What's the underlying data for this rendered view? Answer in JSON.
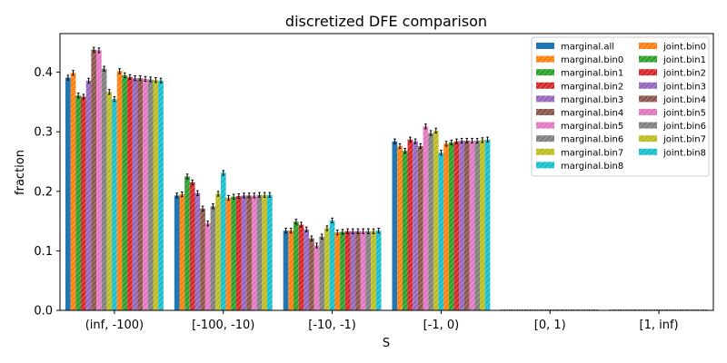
{
  "chart_data": {
    "type": "bar",
    "title": "discretized DFE comparison",
    "xlabel": "S",
    "ylabel": "fraction",
    "ylim": [
      0,
      0.465
    ],
    "yticks": [
      "0.0",
      "0.1",
      "0.2",
      "0.3",
      "0.4"
    ],
    "ytick_values": [
      0,
      0.1,
      0.2,
      0.3,
      0.4
    ],
    "categories": [
      "(inf, -100)",
      "[-100, -10)",
      "[-10, -1)",
      "[-1, 0)",
      "[0, 1)",
      "[1, inf)"
    ],
    "legend_position": "upper right",
    "series": [
      {
        "name": "marginal.all",
        "color": "#1f77b4",
        "hatch": false,
        "values": [
          0.391,
          0.193,
          0.134,
          0.284,
          0.0,
          0.0
        ]
      },
      {
        "name": "marginal.bin0",
        "color": "#ff7f0e",
        "hatch": true,
        "values": [
          0.399,
          0.195,
          0.134,
          0.276,
          0.0,
          0.0
        ]
      },
      {
        "name": "marginal.bin1",
        "color": "#2ca02c",
        "hatch": true,
        "values": [
          0.361,
          0.225,
          0.149,
          0.268,
          0.0,
          0.0
        ]
      },
      {
        "name": "marginal.bin2",
        "color": "#d62728",
        "hatch": true,
        "values": [
          0.359,
          0.215,
          0.144,
          0.287,
          0.0,
          0.0
        ]
      },
      {
        "name": "marginal.bin3",
        "color": "#9467bd",
        "hatch": true,
        "values": [
          0.386,
          0.197,
          0.136,
          0.284,
          0.0,
          0.0
        ]
      },
      {
        "name": "marginal.bin4",
        "color": "#8c564b",
        "hatch": true,
        "values": [
          0.438,
          0.171,
          0.121,
          0.276,
          0.0,
          0.0
        ]
      },
      {
        "name": "marginal.bin5",
        "color": "#e377c2",
        "hatch": true,
        "values": [
          0.437,
          0.146,
          0.109,
          0.309,
          0.0,
          0.0
        ]
      },
      {
        "name": "marginal.bin6",
        "color": "#7f7f7f",
        "hatch": true,
        "values": [
          0.406,
          0.175,
          0.124,
          0.298,
          0.0,
          0.0
        ]
      },
      {
        "name": "marginal.bin7",
        "color": "#bcbd22",
        "hatch": true,
        "values": [
          0.367,
          0.196,
          0.138,
          0.302,
          0.0,
          0.0
        ]
      },
      {
        "name": "marginal.bin8",
        "color": "#17becf",
        "hatch": true,
        "values": [
          0.355,
          0.231,
          0.151,
          0.265,
          0.0,
          0.0
        ]
      },
      {
        "name": "joint.bin0",
        "color": "#ff7f0e",
        "hatch": true,
        "values": [
          0.402,
          0.189,
          0.131,
          0.28,
          0.0,
          0.0
        ]
      },
      {
        "name": "joint.bin1",
        "color": "#2ca02c",
        "hatch": true,
        "values": [
          0.395,
          0.191,
          0.132,
          0.282,
          0.0,
          0.0
        ]
      },
      {
        "name": "joint.bin2",
        "color": "#d62728",
        "hatch": true,
        "values": [
          0.392,
          0.192,
          0.133,
          0.284,
          0.0,
          0.0
        ]
      },
      {
        "name": "joint.bin3",
        "color": "#9467bd",
        "hatch": true,
        "values": [
          0.39,
          0.193,
          0.133,
          0.285,
          0.0,
          0.0
        ]
      },
      {
        "name": "joint.bin4",
        "color": "#8c564b",
        "hatch": true,
        "values": [
          0.39,
          0.193,
          0.133,
          0.285,
          0.0,
          0.0
        ]
      },
      {
        "name": "joint.bin5",
        "color": "#e377c2",
        "hatch": true,
        "values": [
          0.389,
          0.193,
          0.133,
          0.285,
          0.0,
          0.0
        ]
      },
      {
        "name": "joint.bin6",
        "color": "#7f7f7f",
        "hatch": true,
        "values": [
          0.388,
          0.194,
          0.133,
          0.285,
          0.0,
          0.0
        ]
      },
      {
        "name": "joint.bin7",
        "color": "#bcbd22",
        "hatch": true,
        "values": [
          0.387,
          0.194,
          0.133,
          0.286,
          0.0,
          0.0
        ]
      },
      {
        "name": "joint.bin8",
        "color": "#17becf",
        "hatch": true,
        "values": [
          0.386,
          0.194,
          0.134,
          0.287,
          0.0,
          0.0
        ]
      }
    ]
  }
}
